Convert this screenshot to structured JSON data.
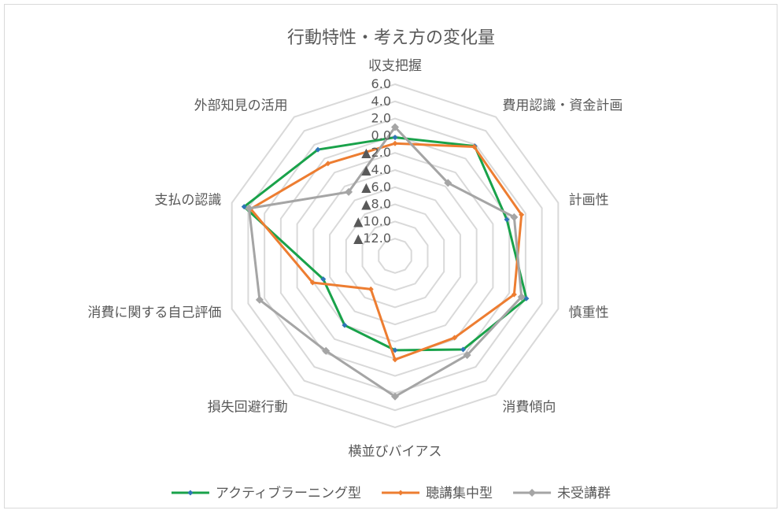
{
  "chart_data": {
    "type": "radar",
    "title": "行動特性・考え方の変化量",
    "categories": [
      "収支把握",
      "費用認識・資金計画",
      "計画性",
      "慎重性",
      "消費傾向",
      "横並びバイアス",
      "損失回避行動",
      "消費に関する自己評価",
      "支払の認識",
      "外部知見の活用"
    ],
    "tick_labels": [
      "6.0",
      "4.0",
      "2.0",
      "0.0",
      "▲2.0",
      "▲4.0",
      "▲6.0",
      "▲8.0",
      "▲10.0",
      "▲12.0"
    ],
    "rlim": [
      -14,
      6
    ],
    "grid": true,
    "legend_position": "bottom",
    "series": [
      {
        "name": "アクティブラーニング型",
        "color": "#19a24a",
        "values": [
          -0.2,
          1.8,
          -0.3,
          2.1,
          -0.5,
          -3.0,
          -4.0,
          -5.2,
          4.5,
          1.3
        ]
      },
      {
        "name": "聴講集中型",
        "color": "#ed7d31",
        "values": [
          -0.9,
          1.7,
          1.5,
          0.6,
          -2.2,
          -1.9,
          -9.2,
          -3.9,
          3.7,
          -0.7
        ]
      },
      {
        "name": "未受講群",
        "color": "#a5a5a5",
        "values": [
          1.0,
          -3.5,
          0.6,
          1.5,
          0.3,
          2.4,
          -0.3,
          2.6,
          3.9,
          -4.8
        ]
      }
    ]
  }
}
